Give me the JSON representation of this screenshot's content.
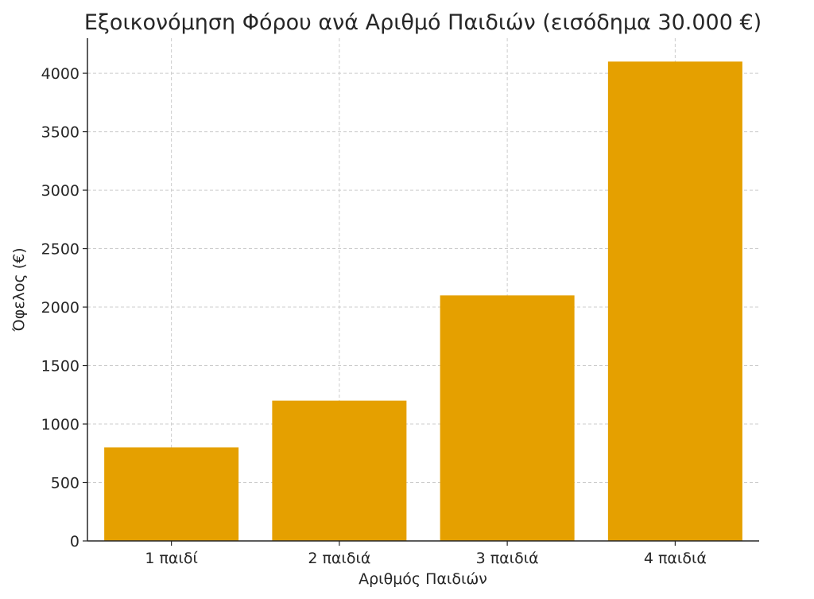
{
  "chart_data": {
    "type": "bar",
    "title": "Εξοικονόμηση Φόρου ανά Αριθμό Παιδιών (εισόδημα 30.000 €)",
    "xlabel": "Αριθμός Παιδιών",
    "ylabel": "Όφελος (€)",
    "categories": [
      "1 παιδί",
      "2 παιδιά",
      "3 παιδιά",
      "4 παιδιά"
    ],
    "values": [
      800,
      1200,
      2100,
      4100
    ],
    "ylim": [
      0,
      4300
    ],
    "yticks": [
      0,
      500,
      1000,
      1500,
      2000,
      2500,
      3000,
      3500,
      4000
    ],
    "grid": true,
    "bar_color": "#e5a000"
  }
}
